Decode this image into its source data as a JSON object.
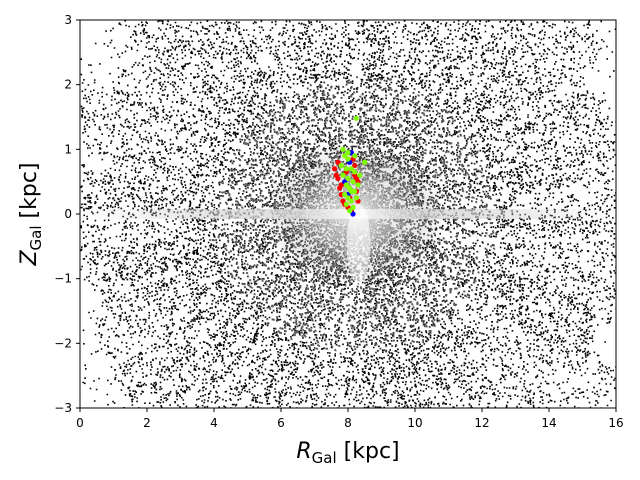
{
  "chart_data": {
    "type": "scatter",
    "title": "",
    "xlabel": {
      "symbol": "R",
      "subscript": "Gal",
      "unit": "[kpc]"
    },
    "ylabel": {
      "symbol": "Z",
      "subscript": "Gal",
      "unit": "[kpc]"
    },
    "xlim": [
      0,
      16
    ],
    "ylim": [
      -3,
      3
    ],
    "x_ticks": [
      0,
      2,
      4,
      6,
      8,
      10,
      12,
      14,
      16
    ],
    "y_ticks": [
      -3,
      -2,
      -1,
      0,
      1,
      2,
      3
    ],
    "x_tick_labels": [
      "0",
      "2",
      "4",
      "6",
      "8",
      "10",
      "12",
      "14",
      "16"
    ],
    "y_tick_labels": [
      "−3",
      "−2",
      "−1",
      "0",
      "1",
      "2",
      "3"
    ],
    "grid": false,
    "legend": null,
    "background_density": {
      "description": "grayscale star-density map, darker = sparser, brighter = denser",
      "sun_position": {
        "R": 8.2,
        "Z": 0.0
      },
      "colormap": [
        "#000000",
        "#ffffff"
      ]
    },
    "series": [
      {
        "color": "#ff0000",
        "points": [
          [
            7.6,
            0.7
          ],
          [
            7.7,
            0.55
          ],
          [
            7.75,
            0.4
          ],
          [
            7.8,
            0.3
          ],
          [
            7.85,
            0.2
          ],
          [
            7.9,
            0.15
          ],
          [
            8.0,
            0.1
          ],
          [
            8.1,
            0.05
          ],
          [
            7.65,
            0.6
          ],
          [
            7.7,
            0.8
          ],
          [
            8.2,
            0.6
          ],
          [
            8.25,
            0.55
          ],
          [
            8.3,
            0.5
          ],
          [
            8.2,
            0.75
          ],
          [
            8.15,
            0.85
          ],
          [
            7.8,
            0.45
          ],
          [
            8.05,
            0.25
          ],
          [
            7.95,
            0.65
          ],
          [
            8.3,
            0.2
          ],
          [
            8.25,
            0.35
          ]
        ]
      },
      {
        "color": "#0000ff",
        "points": [
          [
            8.1,
            0.95
          ],
          [
            8.15,
            0.0
          ],
          [
            7.9,
            0.5
          ],
          [
            8.0,
            0.3
          ],
          [
            8.05,
            0.8
          ]
        ]
      },
      {
        "color": "#80ff00",
        "points": [
          [
            8.25,
            1.48
          ],
          [
            7.85,
            1.0
          ],
          [
            8.5,
            0.8
          ],
          [
            7.9,
            0.9
          ],
          [
            8.0,
            0.85
          ],
          [
            7.95,
            0.7
          ],
          [
            8.1,
            0.7
          ],
          [
            8.2,
            0.65
          ],
          [
            7.85,
            0.6
          ],
          [
            8.0,
            0.55
          ],
          [
            8.15,
            0.5
          ],
          [
            8.3,
            0.45
          ],
          [
            7.95,
            0.45
          ],
          [
            8.05,
            0.4
          ],
          [
            8.2,
            0.35
          ],
          [
            7.9,
            0.3
          ],
          [
            8.0,
            0.25
          ],
          [
            8.1,
            0.2
          ],
          [
            8.15,
            0.1
          ],
          [
            8.05,
            0.05
          ],
          [
            7.8,
            0.75
          ],
          [
            8.35,
            0.6
          ],
          [
            8.1,
            0.35
          ],
          [
            7.95,
            0.15
          ],
          [
            8.25,
            0.25
          ],
          [
            8.0,
            0.95
          ],
          [
            8.2,
            0.9
          ]
        ]
      }
    ]
  }
}
